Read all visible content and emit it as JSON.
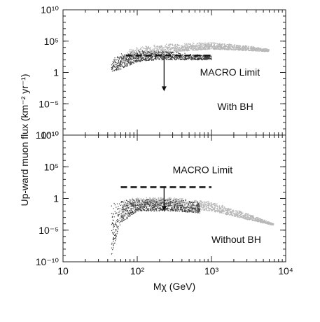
{
  "ylabel": "Up-ward muon flux (km⁻² yr⁻¹)",
  "xlabel": "Mχ (GeV)",
  "x_ticks": [
    {
      "value": 10,
      "label": "10"
    },
    {
      "value": 100,
      "label": "10²"
    },
    {
      "value": 1000,
      "label": "10³"
    },
    {
      "value": 10000,
      "label": "10⁴"
    }
  ],
  "y_ticks": [
    {
      "value": 1e-10,
      "label": "10⁻¹⁰"
    },
    {
      "value": 1e-05,
      "label": "10⁻⁵"
    },
    {
      "value": 1,
      "label": "1"
    },
    {
      "value": 100000.0,
      "label": "10⁵"
    },
    {
      "value": 10000000000.0,
      "label": "10¹⁰"
    }
  ],
  "chart_data": [
    {
      "type": "scatter",
      "panel": "top",
      "xscale": "log",
      "yscale": "log",
      "xlim": [
        10,
        10000
      ],
      "ylim": [
        1e-10,
        10000000000.0
      ],
      "annotations": [
        {
          "text": "MACRO Limit",
          "x": 700,
          "y": 0.3
        },
        {
          "text": "With BH",
          "x": 1200,
          "y": 1e-06
        }
      ],
      "macro_limit": {
        "x": [
          70,
          1000
        ],
        "y": 500,
        "style": "dashed"
      },
      "arrow": {
        "x": 230,
        "y_from": 500,
        "y_to": 0.001
      },
      "envelope_light": {
        "x": [
          60,
          80,
          120,
          200,
          500,
          1000,
          3000,
          6000
        ],
        "upper": [
          400,
          5000,
          15000,
          30000,
          50000,
          60000,
          20000,
          5000
        ],
        "lower": [
          10,
          100,
          300,
          1000,
          3000,
          5000,
          3000,
          2000
        ]
      },
      "envelope_dark": {
        "x": [
          45,
          60,
          100,
          200,
          500,
          1000
        ],
        "upper": [
          100,
          1000,
          3000,
          3000,
          1000,
          500
        ],
        "lower": [
          1,
          3,
          50,
          100,
          100,
          100
        ]
      }
    },
    {
      "type": "scatter",
      "panel": "bottom",
      "xscale": "log",
      "yscale": "log",
      "xlim": [
        10,
        10000
      ],
      "ylim": [
        1e-10,
        10000000000.0
      ],
      "annotations": [
        {
          "text": "MACRO Limit",
          "x": 300,
          "y": 10000.0
        },
        {
          "text": "Without BH",
          "x": 1000,
          "y": 1e-07
        }
      ],
      "macro_limit": {
        "x": [
          60,
          1000
        ],
        "y": 60,
        "style": "dashed"
      },
      "arrow": {
        "x": 230,
        "y_from": 60,
        "y_to": 0.01
      },
      "envelope_light": {
        "x": [
          60,
          80,
          150,
          300,
          1000,
          3000,
          7000
        ],
        "upper": [
          0.3,
          1,
          1.5,
          1.5,
          0.3,
          0.005,
          0.0001
        ],
        "lower": [
          0.0001,
          0.05,
          0.1,
          0.05,
          0.01,
          0.0005,
          5e-05
        ]
      },
      "envelope_dark": {
        "x": [
          45,
          60,
          100,
          300,
          700
        ],
        "upper": [
          0.3,
          0.5,
          1,
          0.8,
          0.3
        ],
        "lower": [
          1e-09,
          0.0001,
          0.01,
          0.01,
          0.005
        ]
      }
    }
  ]
}
